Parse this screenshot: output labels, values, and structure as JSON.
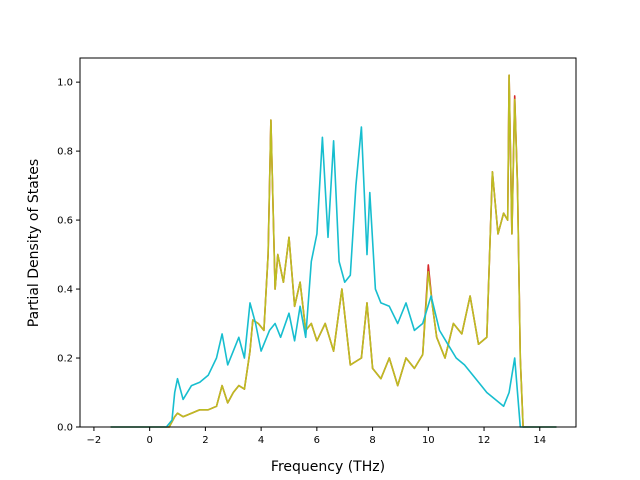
{
  "chart_data": {
    "type": "line",
    "title": "",
    "xlabel": "Frequency (THz)",
    "ylabel": "Partial Density of States",
    "xlim": [
      -2.5,
      15.3
    ],
    "ylim": [
      0.0,
      1.07
    ],
    "grid": false,
    "legend": "none",
    "xticks": [
      -2,
      0,
      2,
      4,
      6,
      8,
      10,
      12,
      14
    ],
    "yticks": [
      0.0,
      0.2,
      0.4,
      0.6,
      0.8,
      1.0
    ],
    "xtick_labels": [
      "−2",
      "0",
      "2",
      "4",
      "6",
      "8",
      "10",
      "12",
      "14"
    ],
    "ytick_labels": [
      "0.0",
      "0.2",
      "0.4",
      "0.6",
      "0.8",
      "1.0"
    ],
    "series": [
      {
        "color": "#d62728",
        "x": [
          -1.4,
          0.7,
          0.9,
          1.0,
          1.2,
          1.5,
          1.8,
          2.1,
          2.4,
          2.6,
          2.8,
          3.0,
          3.2,
          3.4,
          3.6,
          3.7,
          3.9,
          4.1,
          4.25,
          4.35,
          4.5,
          4.6,
          4.8,
          5.0,
          5.2,
          5.4,
          5.6,
          5.8,
          6.0,
          6.3,
          6.6,
          6.9,
          7.2,
          7.6,
          7.8,
          8.0,
          8.3,
          8.6,
          8.9,
          9.2,
          9.5,
          9.8,
          10.0,
          10.15,
          10.3,
          10.6,
          10.9,
          11.2,
          11.5,
          11.8,
          12.1,
          12.3,
          12.5,
          12.7,
          12.85,
          12.9,
          13.0,
          13.1,
          13.2,
          13.3,
          13.4,
          14.6
        ],
        "y": [
          0.0,
          0.0,
          0.03,
          0.04,
          0.03,
          0.04,
          0.05,
          0.05,
          0.06,
          0.12,
          0.07,
          0.1,
          0.12,
          0.11,
          0.22,
          0.31,
          0.3,
          0.28,
          0.5,
          0.89,
          0.4,
          0.5,
          0.42,
          0.55,
          0.35,
          0.42,
          0.28,
          0.3,
          0.25,
          0.3,
          0.22,
          0.4,
          0.18,
          0.2,
          0.36,
          0.17,
          0.14,
          0.2,
          0.12,
          0.2,
          0.17,
          0.21,
          0.47,
          0.35,
          0.26,
          0.2,
          0.3,
          0.27,
          0.38,
          0.24,
          0.26,
          0.74,
          0.56,
          0.62,
          0.6,
          1.02,
          0.56,
          0.96,
          0.7,
          0.2,
          0.0,
          0.0
        ]
      },
      {
        "color": "#bcbd22",
        "x": [
          -1.4,
          0.7,
          0.9,
          1.0,
          1.2,
          1.5,
          1.8,
          2.1,
          2.4,
          2.6,
          2.8,
          3.0,
          3.2,
          3.4,
          3.6,
          3.7,
          3.9,
          4.1,
          4.25,
          4.35,
          4.5,
          4.6,
          4.8,
          5.0,
          5.2,
          5.4,
          5.6,
          5.8,
          6.0,
          6.3,
          6.6,
          6.9,
          7.2,
          7.6,
          7.8,
          8.0,
          8.3,
          8.6,
          8.9,
          9.2,
          9.5,
          9.8,
          10.0,
          10.15,
          10.3,
          10.6,
          10.9,
          11.2,
          11.5,
          11.8,
          12.1,
          12.3,
          12.5,
          12.7,
          12.85,
          12.9,
          13.0,
          13.1,
          13.2,
          13.3,
          13.4,
          14.6
        ],
        "y": [
          0.0,
          0.0,
          0.03,
          0.04,
          0.03,
          0.04,
          0.05,
          0.05,
          0.06,
          0.12,
          0.07,
          0.1,
          0.12,
          0.11,
          0.22,
          0.31,
          0.3,
          0.28,
          0.5,
          0.89,
          0.4,
          0.5,
          0.42,
          0.55,
          0.35,
          0.42,
          0.28,
          0.3,
          0.25,
          0.3,
          0.22,
          0.4,
          0.18,
          0.2,
          0.36,
          0.17,
          0.14,
          0.2,
          0.12,
          0.2,
          0.17,
          0.21,
          0.45,
          0.35,
          0.26,
          0.2,
          0.3,
          0.27,
          0.38,
          0.24,
          0.26,
          0.74,
          0.56,
          0.62,
          0.6,
          1.02,
          0.56,
          0.95,
          0.7,
          0.2,
          0.0,
          0.0
        ]
      },
      {
        "color": "#17becf",
        "x": [
          -1.4,
          0.6,
          0.8,
          0.9,
          1.0,
          1.2,
          1.5,
          1.8,
          2.1,
          2.4,
          2.6,
          2.8,
          3.0,
          3.2,
          3.4,
          3.6,
          3.8,
          4.0,
          4.3,
          4.5,
          4.7,
          5.0,
          5.2,
          5.4,
          5.6,
          5.8,
          6.0,
          6.2,
          6.4,
          6.6,
          6.8,
          7.0,
          7.2,
          7.4,
          7.6,
          7.8,
          7.9,
          8.1,
          8.3,
          8.6,
          8.9,
          9.2,
          9.5,
          9.8,
          10.1,
          10.4,
          10.7,
          11.0,
          11.3,
          11.6,
          11.9,
          12.1,
          12.4,
          12.7,
          12.9,
          13.1,
          13.2,
          13.3,
          13.4,
          14.6
        ],
        "y": [
          0.0,
          0.0,
          0.02,
          0.1,
          0.14,
          0.08,
          0.12,
          0.13,
          0.15,
          0.2,
          0.27,
          0.18,
          0.22,
          0.26,
          0.2,
          0.36,
          0.3,
          0.22,
          0.28,
          0.3,
          0.26,
          0.33,
          0.25,
          0.35,
          0.26,
          0.48,
          0.56,
          0.84,
          0.55,
          0.83,
          0.48,
          0.42,
          0.44,
          0.7,
          0.87,
          0.5,
          0.68,
          0.4,
          0.36,
          0.35,
          0.3,
          0.36,
          0.28,
          0.3,
          0.38,
          0.28,
          0.24,
          0.2,
          0.18,
          0.15,
          0.12,
          0.1,
          0.08,
          0.06,
          0.1,
          0.2,
          0.1,
          0.0,
          0.0,
          0.0
        ]
      }
    ]
  }
}
